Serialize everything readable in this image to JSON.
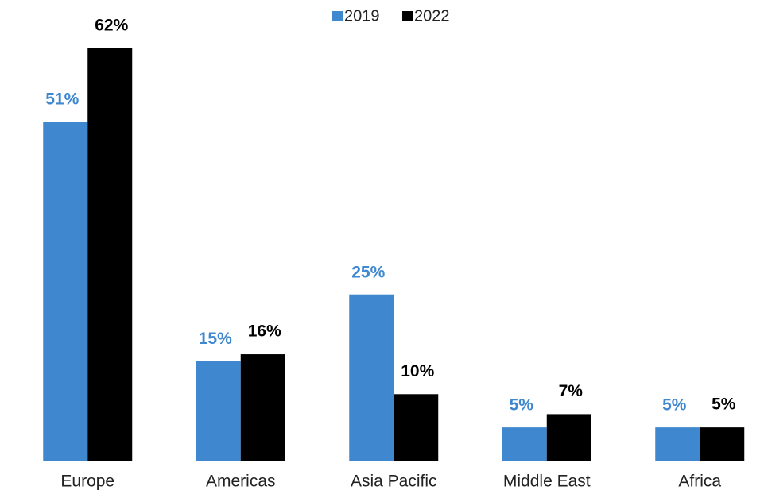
{
  "chart_data": {
    "type": "bar",
    "categories": [
      "Europe",
      "Americas",
      "Asia Pacific",
      "Middle East",
      "Africa"
    ],
    "series": [
      {
        "name": "2019",
        "color": "#3f88d0",
        "values": [
          51,
          15,
          25,
          5,
          5
        ],
        "value_labels": [
          "51%",
          "15%",
          "25%",
          "5%",
          "5%"
        ]
      },
      {
        "name": "2022",
        "color": "#000000",
        "values": [
          62,
          16,
          10,
          7,
          5
        ],
        "value_labels": [
          "62%",
          "16%",
          "10%",
          "7%",
          "5%"
        ]
      }
    ],
    "legend": "top"
  }
}
